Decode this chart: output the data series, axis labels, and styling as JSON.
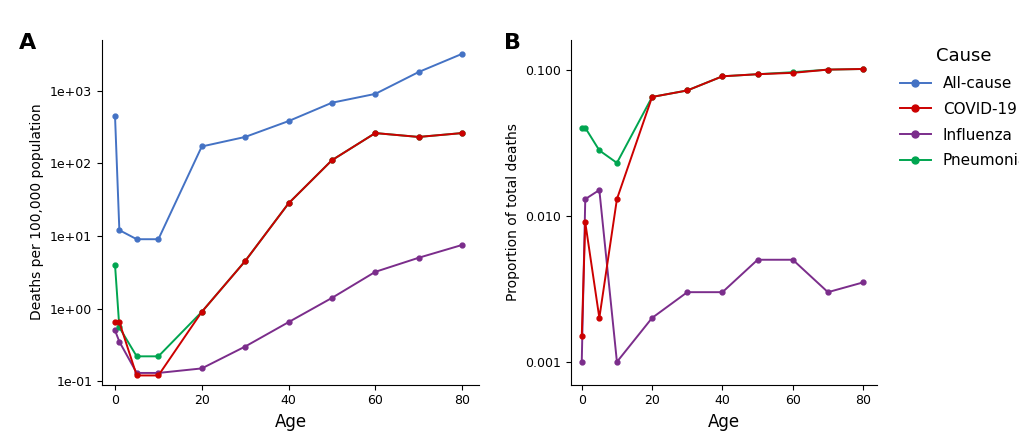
{
  "age": [
    0,
    1,
    5,
    10,
    20,
    30,
    40,
    50,
    60,
    70,
    80
  ],
  "panel_A": {
    "all_cause": [
      450,
      12,
      9,
      9,
      170,
      230,
      380,
      680,
      900,
      1800,
      3200
    ],
    "covid19": [
      0.65,
      0.65,
      0.12,
      0.12,
      0.9,
      4.5,
      28,
      110,
      260,
      230,
      260
    ],
    "influenza": [
      0.5,
      0.35,
      0.13,
      0.13,
      0.15,
      0.3,
      0.65,
      1.4,
      3.2,
      5.0,
      7.5
    ],
    "pneumonia": [
      4.0,
      0.55,
      0.22,
      0.22,
      0.9,
      4.5,
      28,
      110,
      260,
      230,
      260
    ]
  },
  "panel_B": {
    "covid19": [
      0.0015,
      0.009,
      0.002,
      0.013,
      0.065,
      0.072,
      0.09,
      0.093,
      0.095,
      0.1,
      0.101
    ],
    "influenza": [
      0.001,
      0.013,
      0.015,
      0.001,
      0.002,
      0.003,
      0.003,
      0.005,
      0.005,
      0.003,
      0.0035
    ],
    "pneumonia": [
      0.04,
      0.04,
      0.028,
      0.023,
      0.065,
      0.072,
      0.09,
      0.093,
      0.096,
      0.1,
      0.101
    ]
  },
  "colors": {
    "all_cause": "#4472C4",
    "covid19": "#CC0000",
    "influenza": "#7B2D8B",
    "pneumonia": "#00A550"
  },
  "panel_A_ylabel": "Deaths per 100,000 population",
  "panel_B_ylabel": "Proportion of total deaths",
  "xlabel": "Age",
  "panel_A_label": "A",
  "panel_B_label": "B",
  "legend_title": "Cause",
  "legend_labels": [
    "All-cause",
    "COVID-19",
    "Influenza",
    "Pneumonia"
  ]
}
